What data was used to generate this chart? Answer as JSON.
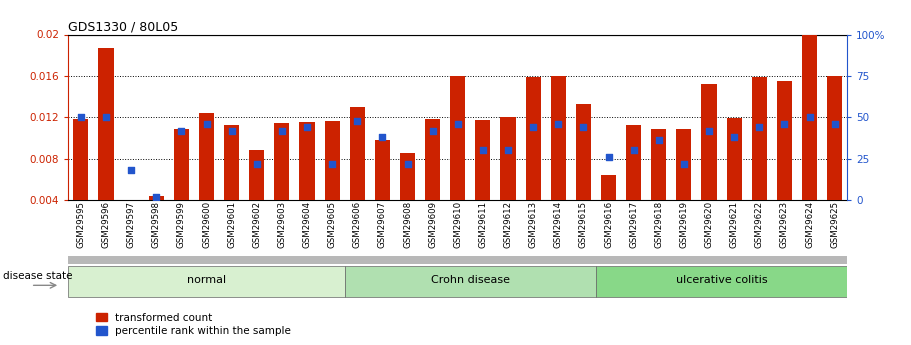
{
  "title": "GDS1330 / 80L05",
  "samples": [
    "GSM29595",
    "GSM29596",
    "GSM29597",
    "GSM29598",
    "GSM29599",
    "GSM29600",
    "GSM29601",
    "GSM29602",
    "GSM29603",
    "GSM29604",
    "GSM29605",
    "GSM29606",
    "GSM29607",
    "GSM29608",
    "GSM29609",
    "GSM29610",
    "GSM29611",
    "GSM29612",
    "GSM29613",
    "GSM29614",
    "GSM29615",
    "GSM29616",
    "GSM29617",
    "GSM29618",
    "GSM29619",
    "GSM29620",
    "GSM29621",
    "GSM29622",
    "GSM29623",
    "GSM29624",
    "GSM29625"
  ],
  "transformed_count": [
    0.01185,
    0.01865,
    0.00395,
    0.00435,
    0.01085,
    0.01245,
    0.0113,
    0.00885,
    0.01145,
    0.01155,
    0.01165,
    0.01295,
    0.00985,
    0.00855,
    0.01185,
    0.01595,
    0.01175,
    0.012,
    0.0159,
    0.01595,
    0.0133,
    0.0064,
    0.0113,
    0.0109,
    0.01085,
    0.0152,
    0.0119,
    0.0159,
    0.01555,
    0.02,
    0.01595
  ],
  "percentile_rank_pct": [
    50,
    50,
    18,
    2,
    42,
    46,
    42,
    22,
    42,
    44,
    22,
    48,
    38,
    22,
    42,
    46,
    30,
    30,
    44,
    46,
    44,
    26,
    30,
    36,
    22,
    42,
    38,
    44,
    46,
    50,
    46
  ],
  "groups": [
    {
      "label": "normal",
      "start": 0,
      "end": 11,
      "color": "#d8f0d0"
    },
    {
      "label": "Crohn disease",
      "start": 11,
      "end": 21,
      "color": "#b0e0b0"
    },
    {
      "label": "ulcerative colitis",
      "start": 21,
      "end": 31,
      "color": "#88d888"
    }
  ],
  "bar_color_red": "#cc2200",
  "bar_color_blue": "#2255cc",
  "ylim_left": [
    0.004,
    0.02
  ],
  "ylim_right": [
    0,
    100
  ],
  "yticks_left": [
    0.004,
    0.008,
    0.012,
    0.016,
    0.02
  ],
  "ytick_labels_left": [
    "0.004",
    "0.008",
    "0.012",
    "0.016",
    "0.02"
  ],
  "yticks_right": [
    0,
    25,
    50,
    75,
    100
  ],
  "ytick_labels_right": [
    "0",
    "25",
    "50",
    "75",
    "100%"
  ],
  "background_color": "#ffffff",
  "legend_items": [
    "transformed count",
    "percentile rank within the sample"
  ]
}
